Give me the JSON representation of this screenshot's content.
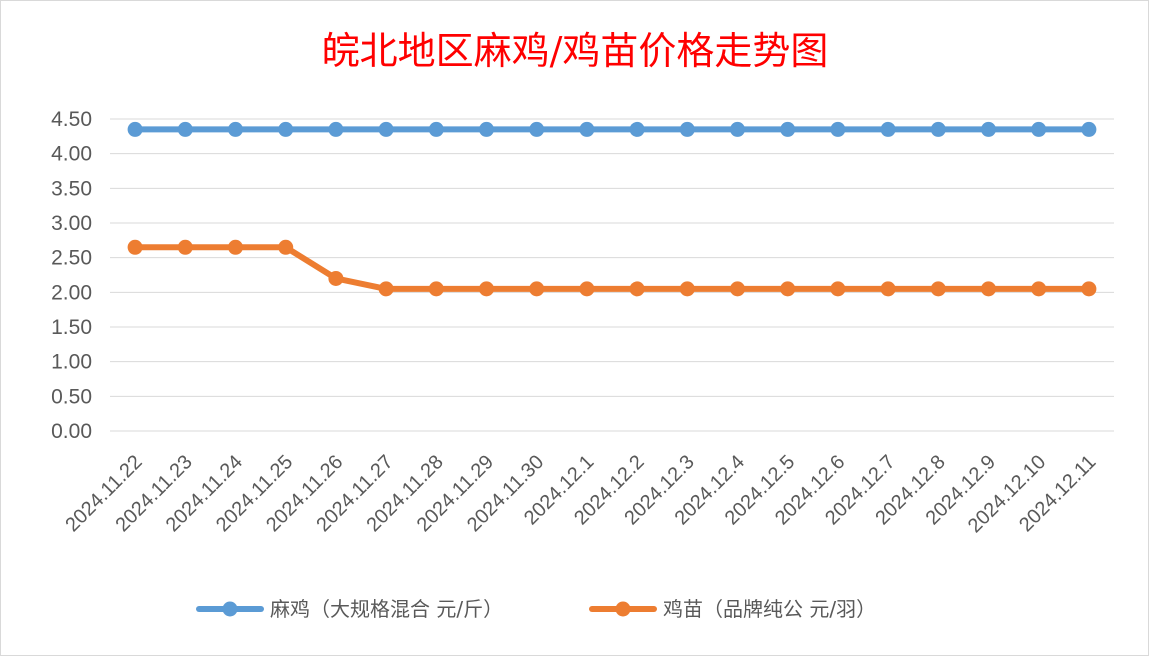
{
  "chart_data": {
    "type": "line",
    "title": "皖北地区麻鸡/鸡苗价格走势图",
    "xlabel": "",
    "ylabel": "",
    "ylim": [
      0,
      4.5
    ],
    "yticks": [
      "0.00",
      "0.50",
      "1.00",
      "1.50",
      "2.00",
      "2.50",
      "3.00",
      "3.50",
      "4.00",
      "4.50"
    ],
    "categories": [
      "2024.11.22",
      "2024.11.23",
      "2024.11.24",
      "2024.11.25",
      "2024.11.26",
      "2024.11.27",
      "2024.11.28",
      "2024.11.29",
      "2024.11.30",
      "2024.12.1",
      "2024.12.2",
      "2024.12.3",
      "2024.12.4",
      "2024.12.5",
      "2024.12.6",
      "2024.12.7",
      "2024.12.8",
      "2024.12.9",
      "2024.12.10",
      "2024.12.11"
    ],
    "grid": true,
    "legend_position": "bottom",
    "series": [
      {
        "name": "麻鸡（大规格混合 元/斤）",
        "color": "#5b9bd5",
        "values": [
          4.35,
          4.35,
          4.35,
          4.35,
          4.35,
          4.35,
          4.35,
          4.35,
          4.35,
          4.35,
          4.35,
          4.35,
          4.35,
          4.35,
          4.35,
          4.35,
          4.35,
          4.35,
          4.35,
          4.35
        ]
      },
      {
        "name": "鸡苗（品牌纯公 元/羽）",
        "color": "#ed7d31",
        "values": [
          2.65,
          2.65,
          2.65,
          2.65,
          2.2,
          2.05,
          2.05,
          2.05,
          2.05,
          2.05,
          2.05,
          2.05,
          2.05,
          2.05,
          2.05,
          2.05,
          2.05,
          2.05,
          2.05,
          2.05
        ]
      }
    ]
  }
}
